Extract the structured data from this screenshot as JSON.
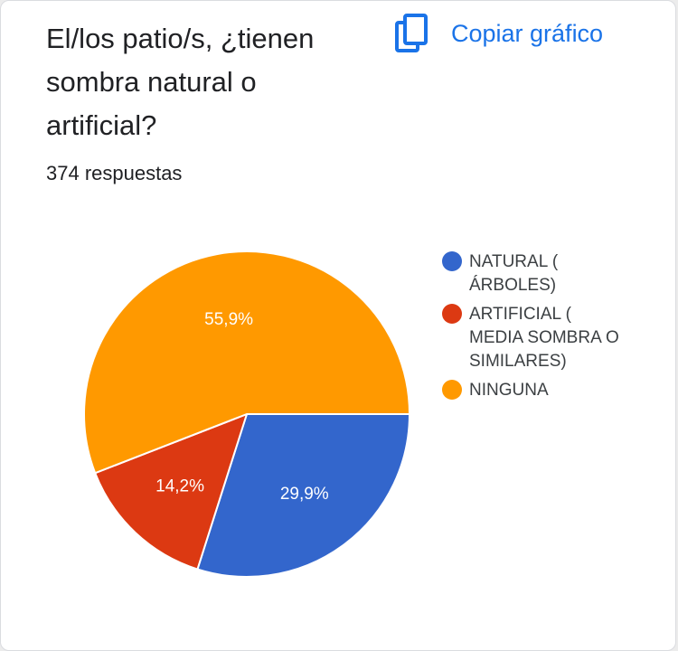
{
  "title": "El/los patio/s, ¿tienen sombra natural o artificial?",
  "responses": "374 respuestas",
  "copy_button": {
    "label": "Copiar gráfico",
    "icon": "copy-icon"
  },
  "colors": {
    "accent": "#1a73e8"
  },
  "chart_data": {
    "type": "pie",
    "categories": [
      "NATURAL ( ÁRBOLES)",
      "ARTIFICIAL ( MEDIA SOMBRA O SIMILARES)",
      "NINGUNA"
    ],
    "values": [
      29.9,
      14.2,
      55.9
    ],
    "labels": [
      "29,9%",
      "14,2%",
      "55,9%"
    ],
    "colors": [
      "#3366cc",
      "#dc3912",
      "#ff9900"
    ],
    "legend_position": "right",
    "title": "",
    "xlabel": "",
    "ylabel": ""
  }
}
